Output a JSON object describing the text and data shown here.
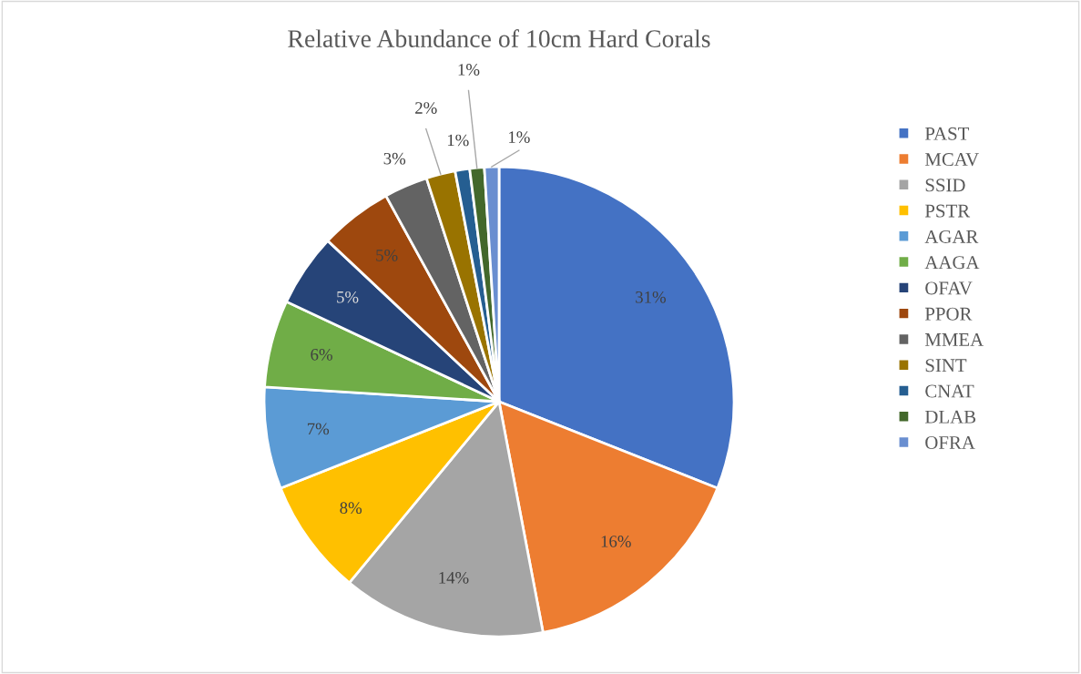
{
  "chart_data": {
    "type": "pie",
    "title": "Relative Abundance of 10cm Hard Corals",
    "categories": [
      "PAST",
      "MCAV",
      "SSID",
      "PSTR",
      "AGAR",
      "AAGA",
      "OFAV",
      "PPOR",
      "MMEA",
      "SINT",
      "CNAT",
      "DLAB",
      "OFRA"
    ],
    "values": [
      31,
      16,
      14,
      8,
      7,
      6,
      5,
      5,
      3,
      2,
      1,
      1,
      1
    ],
    "colors": [
      "#4472c4",
      "#ed7d31",
      "#a5a5a5",
      "#ffc000",
      "#5b9bd5",
      "#70ad47",
      "#264478",
      "#9e480e",
      "#636363",
      "#997300",
      "#255e91",
      "#43682b",
      "#698ed0"
    ],
    "value_labels": [
      "31%",
      "16%",
      "14%",
      "8%",
      "7%",
      "6%",
      "5%",
      "5%",
      "3%",
      "2%",
      "1%",
      "1%",
      "1%"
    ],
    "legend": "right"
  }
}
